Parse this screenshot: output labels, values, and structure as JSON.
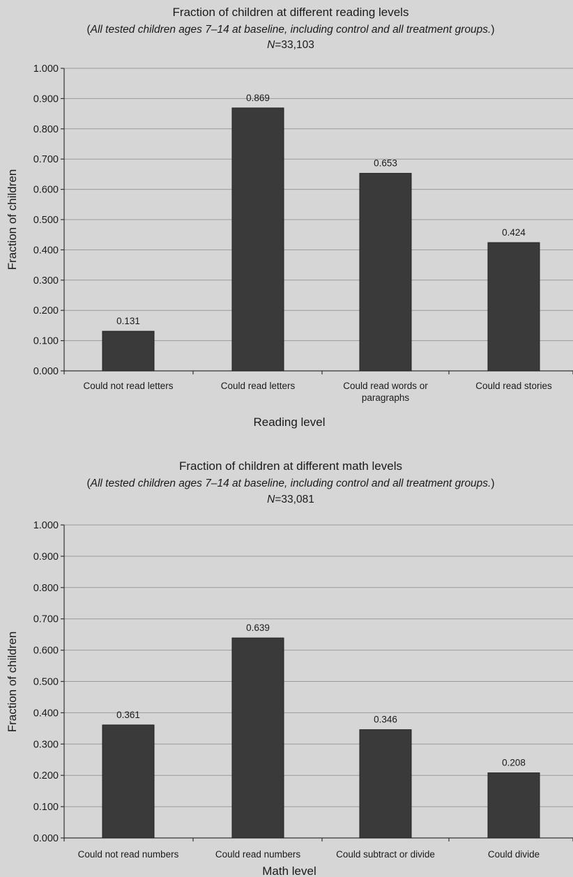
{
  "chart_data": [
    {
      "type": "bar",
      "title": "Fraction of children at different reading levels",
      "subtitle_open": "(",
      "subtitle_italic": "All tested children ages 7–14 at baseline, including control and all treatment groups.",
      "subtitle_close": ")",
      "n_prefix": "N",
      "n_value": "=33,103",
      "xlabel": "Reading level",
      "ylabel": "Fraction of children",
      "ylim": [
        0,
        1
      ],
      "yticks": [
        "0.000",
        "0.100",
        "0.200",
        "0.300",
        "0.400",
        "0.500",
        "0.600",
        "0.700",
        "0.800",
        "0.900",
        "1.000"
      ],
      "categories": [
        [
          "Could not read letters"
        ],
        [
          "Could read letters"
        ],
        [
          "Could read words or",
          "paragraphs"
        ],
        [
          "Could read stories"
        ]
      ],
      "values": [
        0.131,
        0.869,
        0.653,
        0.424
      ],
      "value_labels": [
        "0.131",
        "0.869",
        "0.653",
        "0.424"
      ],
      "grid": true
    },
    {
      "type": "bar",
      "title": "Fraction of children at different math levels",
      "subtitle_open": "(",
      "subtitle_italic": "All tested children ages 7–14 at baseline, including control and all treatment groups.",
      "subtitle_close": ")",
      "n_prefix": "N",
      "n_value": "=33,081",
      "xlabel": "Math level",
      "ylabel": "Fraction of children",
      "ylim": [
        0,
        1
      ],
      "yticks": [
        "0.000",
        "0.100",
        "0.200",
        "0.300",
        "0.400",
        "0.500",
        "0.600",
        "0.700",
        "0.800",
        "0.900",
        "1.000"
      ],
      "categories": [
        [
          "Could not read numbers"
        ],
        [
          "Could read numbers"
        ],
        [
          "Could subtract or divide"
        ],
        [
          "Could divide"
        ]
      ],
      "values": [
        0.361,
        0.639,
        0.346,
        0.208
      ],
      "value_labels": [
        "0.361",
        "0.639",
        "0.346",
        "0.208"
      ],
      "grid": true
    }
  ],
  "colors": {
    "bar": "#3a3a3a",
    "background": "#d6d6d6",
    "grid": "#9a9a9a"
  }
}
